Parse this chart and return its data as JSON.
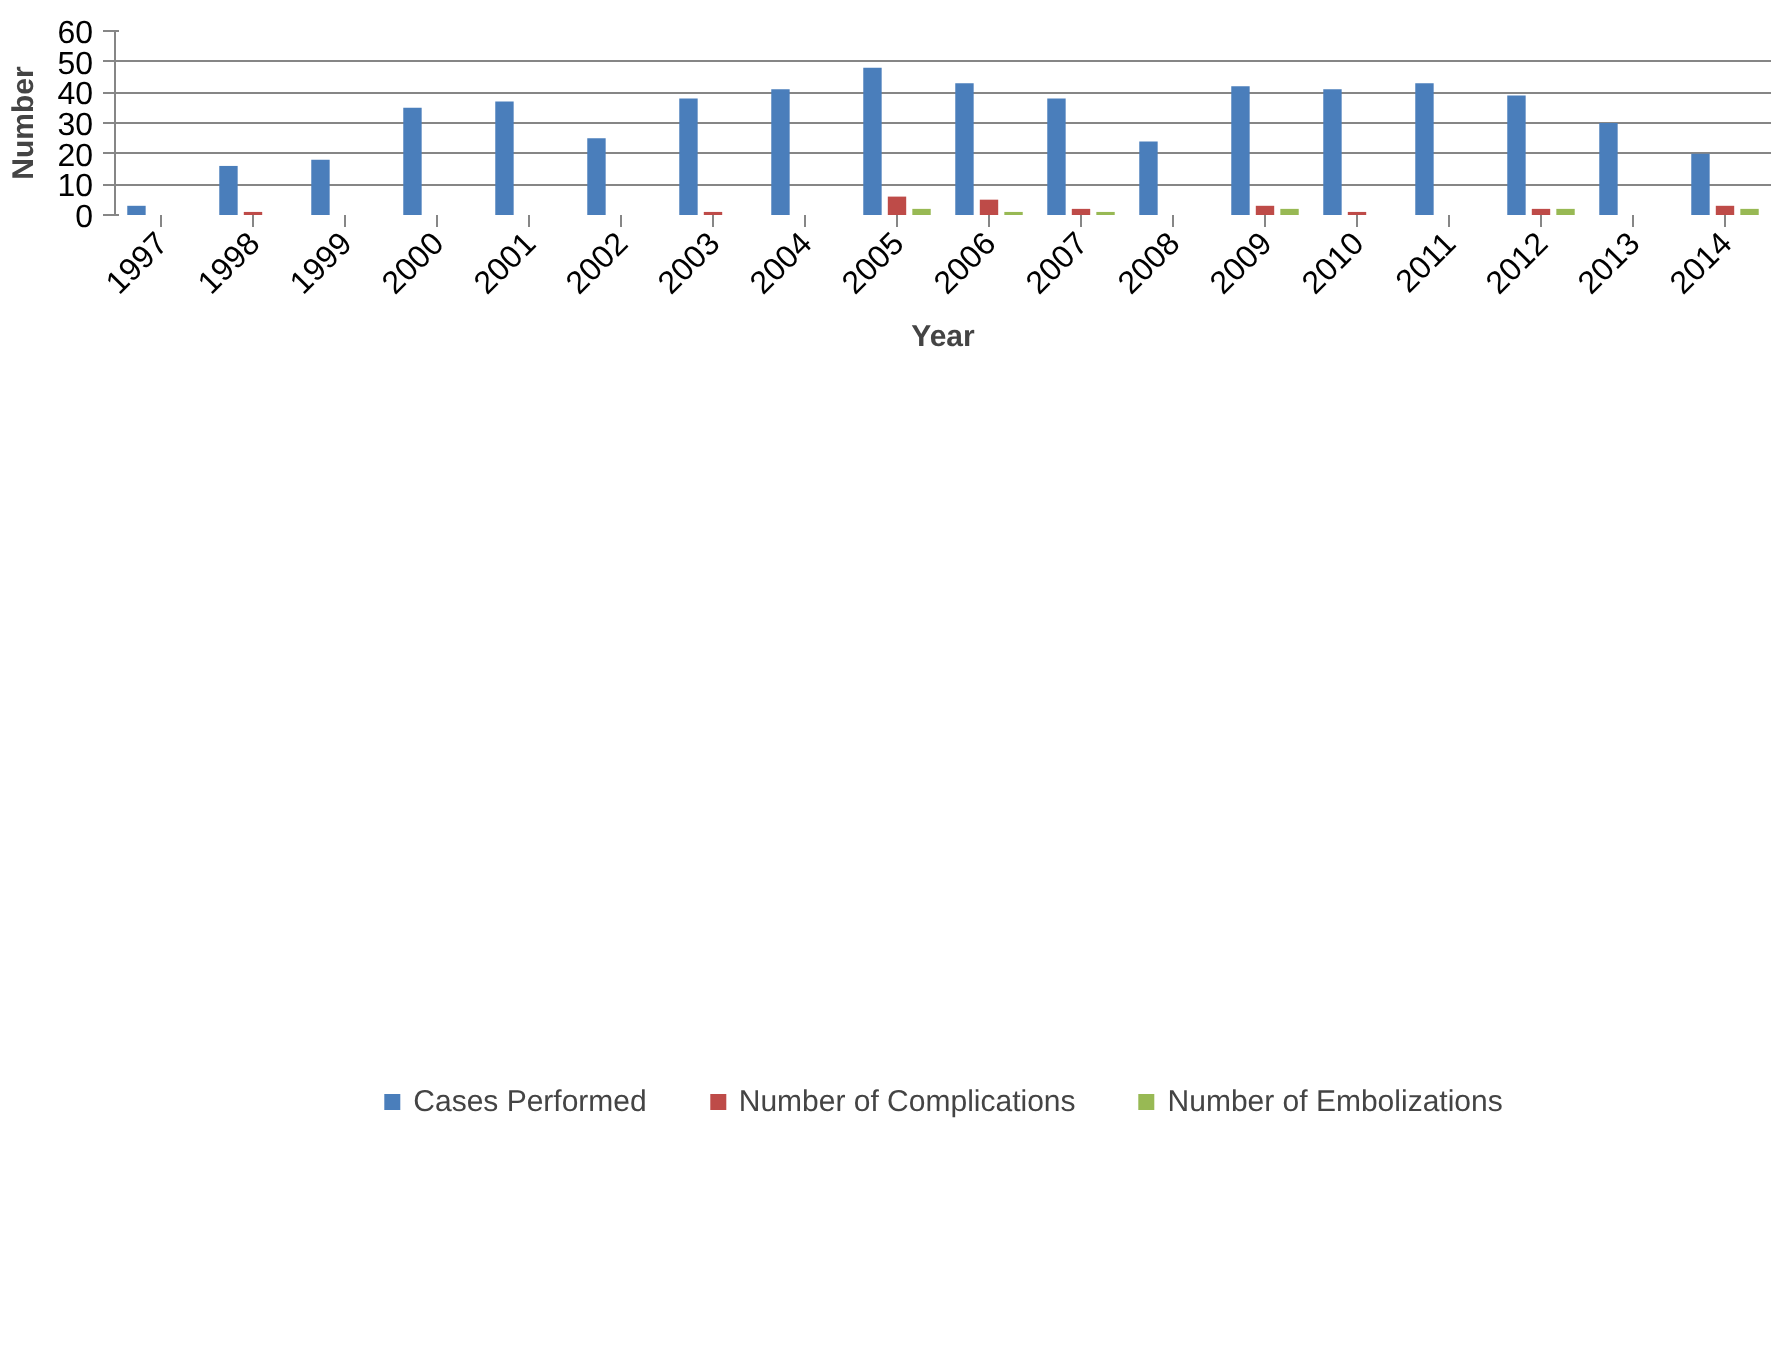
{
  "chart_data": {
    "type": "bar",
    "xlabel": "Year",
    "ylabel": "Number",
    "categories": [
      "1997",
      "1998",
      "1999",
      "2000",
      "2001",
      "2002",
      "2003",
      "2004",
      "2005",
      "2006",
      "2007",
      "2008",
      "2009",
      "2010",
      "2011",
      "2012",
      "2013",
      "2014"
    ],
    "series": [
      {
        "name": "Cases Performed",
        "color": "#4a7ebb",
        "values": [
          3,
          16,
          18,
          35,
          37,
          25,
          38,
          41,
          48,
          43,
          38,
          24,
          42,
          41,
          43,
          39,
          30,
          20
        ]
      },
      {
        "name": "Number of Complications",
        "color": "#be4b48",
        "values": [
          0,
          1,
          0,
          0,
          0,
          0,
          1,
          0,
          6,
          5,
          2,
          0,
          3,
          1,
          0,
          2,
          0,
          3
        ]
      },
      {
        "name": "Number of Embolizations",
        "color": "#98b954",
        "values": [
          0,
          0,
          0,
          0,
          0,
          0,
          0,
          0,
          2,
          1,
          1,
          0,
          2,
          0,
          0,
          2,
          0,
          2
        ]
      }
    ],
    "ylim": [
      0,
      60
    ],
    "yticks": [
      0,
      10,
      20,
      30,
      40,
      50,
      60
    ],
    "grid": "y",
    "legend": "bottom"
  }
}
